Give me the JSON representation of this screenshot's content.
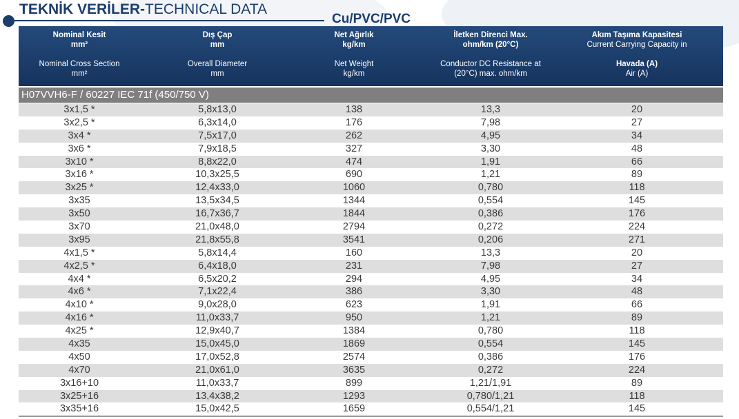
{
  "title": {
    "bold": "TEKNİK VERİLER-",
    "normal": "TECHNICAL DATA"
  },
  "subtitle": "Cu/PVC/PVC",
  "header": [
    {
      "tr_line1": "Nominal Kesit",
      "tr_line2": "mm²",
      "en_line1": "Nominal Cross Section",
      "en_line2": "mm²"
    },
    {
      "tr_line1": "Dış Çap",
      "tr_line2": "mm",
      "en_line1": "Overall Diameter",
      "en_line2": "mm"
    },
    {
      "tr_line1": "Net Ağırlık",
      "tr_line2": "kg/km",
      "en_line1": "Net Weight",
      "en_line2": "kg/km"
    },
    {
      "tr_line1": "İletken Direnci Max.",
      "tr_line2": "ohm/km (20°C)",
      "en_line1": "Conductor DC Resistance at",
      "en_line2": "(20°C) max. ohm/km"
    },
    {
      "tr_line1": "Akım Taşıma Kapasitesi",
      "tr_line2": "Current Carrying Capacity in",
      "en_line1": "Havada (A)",
      "en_line2": "Air (A)"
    }
  ],
  "section_title": "H07VVH6-F / 60227 IEC 71f (450/750 V)",
  "rows": [
    [
      "3x1,5 *",
      "5,8x13,0",
      "138",
      "13,3",
      "20"
    ],
    [
      "3x2,5 *",
      "6,3x14,0",
      "176",
      "7,98",
      "27"
    ],
    [
      "3x4 *",
      "7,5x17,0",
      "262",
      "4,95",
      "34"
    ],
    [
      "3x6 *",
      "7,9x18,5",
      "327",
      "3,30",
      "48"
    ],
    [
      "3x10 *",
      "8,8x22,0",
      "474",
      "1,91",
      "66"
    ],
    [
      "3x16 *",
      "10,3x25,5",
      "690",
      "1,21",
      "89"
    ],
    [
      "3x25 *",
      "12,4x33,0",
      "1060",
      "0,780",
      "118"
    ],
    [
      "3x35",
      "13,5x34,5",
      "1344",
      "0,554",
      "145"
    ],
    [
      "3x50",
      "16,7x36,7",
      "1844",
      "0,386",
      "176"
    ],
    [
      "3x70",
      "21,0x48,0",
      "2794",
      "0,272",
      "224"
    ],
    [
      "3x95",
      "21,8x55,8",
      "3541",
      "0,206",
      "271"
    ],
    [
      "4x1,5 *",
      "5,8x14,4",
      "160",
      "13,3",
      "20"
    ],
    [
      "4x2,5 *",
      "6,4x18,0",
      "231",
      "7,98",
      "27"
    ],
    [
      "4x4 *",
      "6,5x20,2",
      "294",
      "4,95",
      "34"
    ],
    [
      "4x6 *",
      "7,1x22,4",
      "386",
      "3,30",
      "48"
    ],
    [
      "4x10 *",
      "9,0x28,0",
      "623",
      "1,91",
      "66"
    ],
    [
      "4x16 *",
      "11,0x33,7",
      "950",
      "1,21",
      "89"
    ],
    [
      "4x25 *",
      "12,9x40,7",
      "1384",
      "0,780",
      "118"
    ],
    [
      "4x35",
      "15,0x45,0",
      "1869",
      "0,554",
      "145"
    ],
    [
      "4x50",
      "17,0x52,8",
      "2574",
      "0,386",
      "176"
    ],
    [
      "4x70",
      "21,0x61,0",
      "3635",
      "0,272",
      "224"
    ],
    [
      "3x16+10",
      "11,0x33,7",
      "899",
      "1,21/1,91",
      "89"
    ],
    [
      "3x25+16",
      "13,4x38,2",
      "1293",
      "0,780/1,21",
      "118"
    ],
    [
      "3x35+16",
      "15,0x42,5",
      "1659",
      "0,554/1,21",
      "145"
    ]
  ],
  "colors": {
    "brand": "#1c3d6b",
    "header_bg": "#1f4272",
    "section_bg": "#7f7f7f",
    "row_shade": "#c8c8c8"
  }
}
